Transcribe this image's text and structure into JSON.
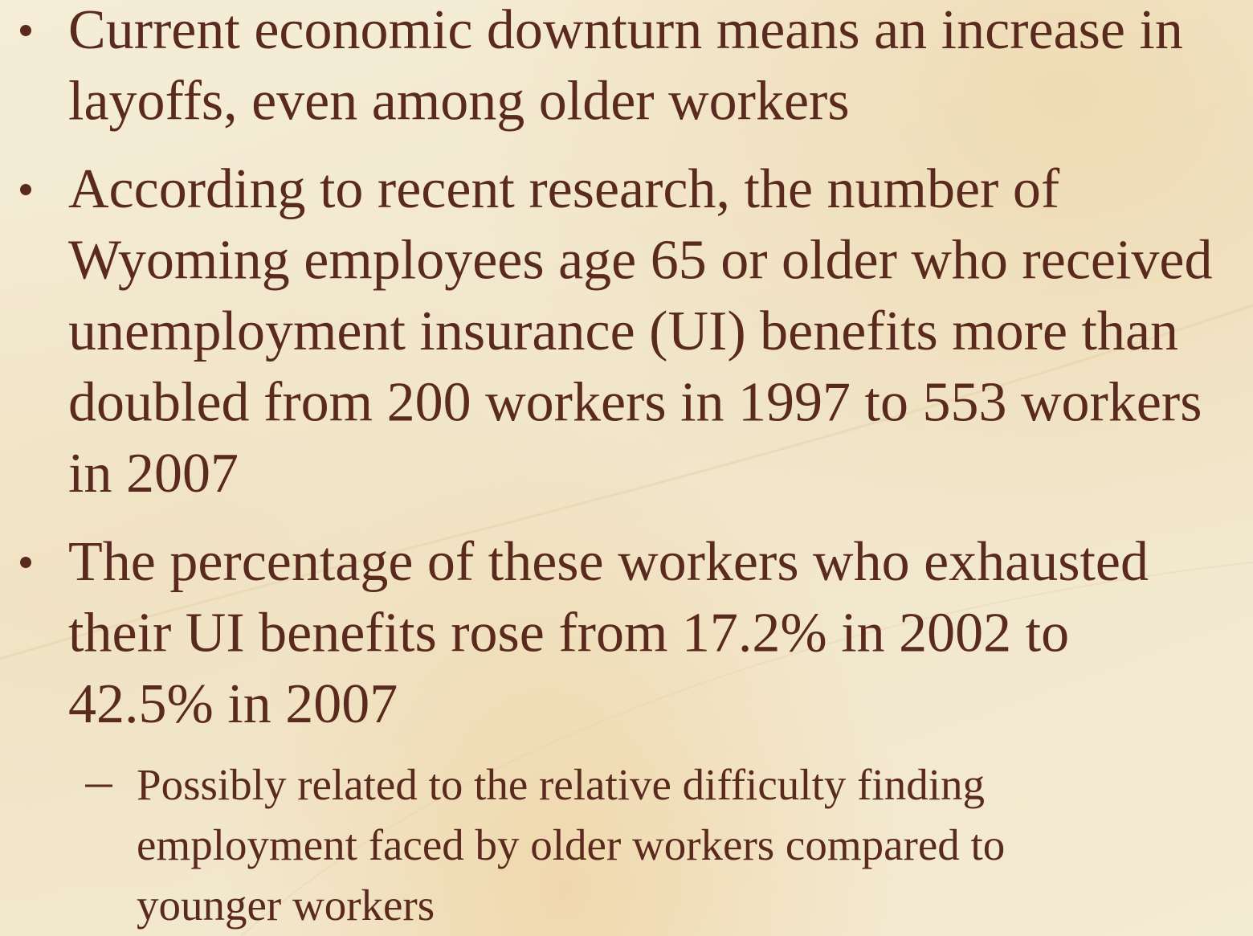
{
  "bullets": [
    {
      "lines": [
        "Current economic downturn means an increase in",
        "layoffs, even among older workers"
      ]
    },
    {
      "lines": [
        "According to recent research, the number of",
        "Wyoming employees age 65 or older who received",
        "unemployment insurance (UI) benefits more than",
        "doubled from 200 workers in 1997 to 553 workers",
        "in 2007"
      ]
    },
    {
      "lines": [
        "The percentage of these workers who exhausted",
        "their UI benefits rose from 17.2% in 2002 to",
        "42.5% in 2007"
      ],
      "sub_bullets": [
        {
          "lines": [
            "Possibly related to the relative difficulty finding",
            "employment faced by older workers compared to",
            "younger workers"
          ]
        }
      ]
    }
  ]
}
